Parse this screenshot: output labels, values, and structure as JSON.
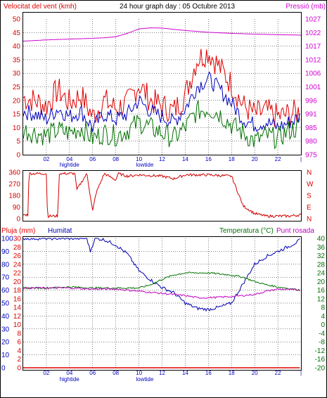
{
  "title": "24 hour graph day : 05 Octubre 2013",
  "colors": {
    "wind": "#e00000",
    "wind_avg": "#0000c0",
    "wind_min": "#007000",
    "pressure": "#d000d0",
    "direction": "#d00000",
    "rain": "#e00000",
    "humidity": "#0000b0",
    "temperature": "#007000",
    "dewpoint": "#c000c0",
    "axis_blue": "#0000c0",
    "grid": "#000000"
  },
  "chart_data": [
    {
      "type": "line",
      "panel": "wind_pressure",
      "left_label": "Velocitat del vent (kmh)",
      "right_label": "Pressió (mb)",
      "y_left_ticks": [
        "0",
        "5",
        "10",
        "15",
        "20",
        "25",
        "30",
        "35",
        "40",
        "45",
        "50"
      ],
      "y_left_range": [
        0,
        50
      ],
      "y_right_ticks": [
        "975",
        "980",
        "985",
        "991",
        "996",
        "1001",
        "1006",
        "1012",
        "1017",
        "1022",
        "1027"
      ],
      "y_right_range": [
        975,
        1027
      ],
      "x_ticks": [
        "02",
        "04",
        "06",
        "08",
        "10",
        "12",
        "14",
        "16",
        "18",
        "20",
        "22",
        "|"
      ],
      "x_markers": {
        "hightide": "hightide",
        "lowtide": "lowtide"
      },
      "series": [
        {
          "key": "pressure",
          "x": [
            0,
            2,
            4,
            6,
            7,
            8,
            9,
            10,
            11,
            12,
            14,
            16,
            18,
            20,
            22,
            24
          ],
          "y": [
            1018.5,
            1019,
            1019.3,
            1019.6,
            1019.8,
            1020.2,
            1021.5,
            1023.2,
            1023.6,
            1023.5,
            1022.6,
            1021.9,
            1021.5,
            1021.2,
            1021,
            1020.8
          ]
        },
        {
          "key": "wind",
          "x": [
            0,
            1,
            2,
            3,
            4,
            5,
            6,
            7,
            8,
            9,
            10,
            11,
            12,
            13,
            14,
            15,
            16,
            17,
            18,
            19,
            20,
            21,
            22,
            23,
            24
          ],
          "y": [
            21,
            20,
            18,
            24,
            19,
            22,
            14,
            20,
            17,
            19,
            26,
            20,
            18,
            16,
            22,
            35,
            38,
            32,
            26,
            18,
            15,
            16,
            14,
            15,
            16
          ]
        },
        {
          "key": "wind_avg",
          "x": [
            0,
            1,
            2,
            3,
            4,
            5,
            6,
            7,
            8,
            9,
            10,
            11,
            12,
            13,
            14,
            15,
            16,
            17,
            18,
            19,
            20,
            21,
            22,
            23,
            24
          ],
          "y": [
            16,
            15,
            13,
            17,
            14,
            16,
            10,
            15,
            13,
            15,
            20,
            16,
            14,
            12,
            17,
            25,
            28,
            24,
            19,
            13,
            11,
            12,
            10,
            12,
            14
          ]
        },
        {
          "key": "wind_min",
          "x": [
            0,
            1,
            2,
            3,
            4,
            5,
            6,
            7,
            8,
            9,
            10,
            11,
            12,
            13,
            14,
            15,
            16,
            17,
            18,
            19,
            20,
            21,
            22,
            23,
            24
          ],
          "y": [
            9,
            8,
            7,
            9,
            8,
            10,
            6,
            8,
            7,
            9,
            12,
            10,
            8,
            6,
            10,
            16,
            17,
            15,
            11,
            8,
            5,
            7,
            6,
            9,
            10
          ]
        }
      ]
    },
    {
      "type": "line",
      "panel": "direction",
      "y_left_ticks": [
        "360",
        "270",
        "180",
        "90",
        "0"
      ],
      "y_left_range": [
        0,
        360
      ],
      "y_right_ticks": [
        "N",
        "W",
        "S",
        "E",
        "N"
      ],
      "series": [
        {
          "key": "direction",
          "x": [
            0,
            0.4,
            0.5,
            2,
            2.1,
            3,
            3.1,
            4.5,
            4.6,
            5.5,
            6,
            6.3,
            7,
            8,
            8.2,
            9,
            10,
            12,
            13,
            14,
            16,
            18,
            19,
            20,
            21,
            22,
            23,
            24
          ],
          "y": [
            30,
            30,
            350,
            350,
            20,
            20,
            350,
            350,
            220,
            350,
            60,
            200,
            350,
            300,
            350,
            330,
            340,
            330,
            310,
            340,
            340,
            330,
            100,
            40,
            20,
            20,
            20,
            30
          ]
        }
      ]
    },
    {
      "type": "line",
      "panel": "rain_humidity_temp",
      "left_label": "Pluja (mm)",
      "left_label2": "Humitat",
      "right_label": "Temperatura (°C)",
      "right_label2": "Punt rosada",
      "y_left_ticks": [
        "0",
        "2",
        "4",
        "6",
        "8",
        "10",
        "12",
        "14",
        "16",
        "18",
        "20",
        "22",
        "24",
        "26",
        "28",
        "30"
      ],
      "y_left_range": [
        0,
        30
      ],
      "y_humidity_ticks": [
        "0",
        "10",
        "20",
        "30",
        "40",
        "50",
        "60",
        "70",
        "80",
        "90",
        "100"
      ],
      "y_humidity_range": [
        0,
        100
      ],
      "y_right_ticks": [
        "-20",
        "-16",
        "-12",
        "-8",
        "-4",
        "0",
        "4",
        "8",
        "12",
        "16",
        "20",
        "24",
        "28",
        "32",
        "36",
        "40"
      ],
      "y_right_range": [
        -20,
        40
      ],
      "x_ticks": [
        "02",
        "04",
        "06",
        "08",
        "10",
        "12",
        "14",
        "16",
        "18",
        "20",
        "22",
        "|"
      ],
      "series": [
        {
          "key": "humidity",
          "x": [
            0,
            2,
            4,
            5.5,
            5.8,
            6.2,
            7,
            8,
            9,
            10,
            11,
            12,
            13,
            14,
            15,
            16,
            17,
            18,
            19,
            20,
            21,
            22,
            23,
            24
          ],
          "y": [
            100,
            100,
            100,
            100,
            90,
            100,
            99,
            95,
            88,
            75,
            68,
            62,
            58,
            50,
            46,
            45,
            47,
            50,
            65,
            80,
            86,
            90,
            94,
            99
          ]
        },
        {
          "key": "temperature",
          "x": [
            0,
            2,
            4,
            6,
            8,
            10,
            11,
            12,
            13,
            14,
            16,
            18,
            19,
            20,
            21,
            22,
            24
          ],
          "y": [
            17,
            17,
            17.5,
            17,
            17,
            17,
            18.5,
            21,
            23,
            24,
            24,
            23,
            22,
            20,
            18.5,
            17.5,
            16
          ]
        },
        {
          "key": "dewpoint",
          "x": [
            0,
            2,
            4,
            6,
            8,
            10,
            12,
            14,
            15,
            16,
            18,
            20,
            21,
            22,
            24
          ],
          "y": [
            17,
            17,
            17,
            16.5,
            16.5,
            15.5,
            14.5,
            13.5,
            12.5,
            12.5,
            13,
            14,
            15.5,
            16.5,
            16
          ]
        },
        {
          "key": "rain",
          "x": [
            0,
            24
          ],
          "y": [
            0,
            0
          ]
        }
      ]
    }
  ]
}
